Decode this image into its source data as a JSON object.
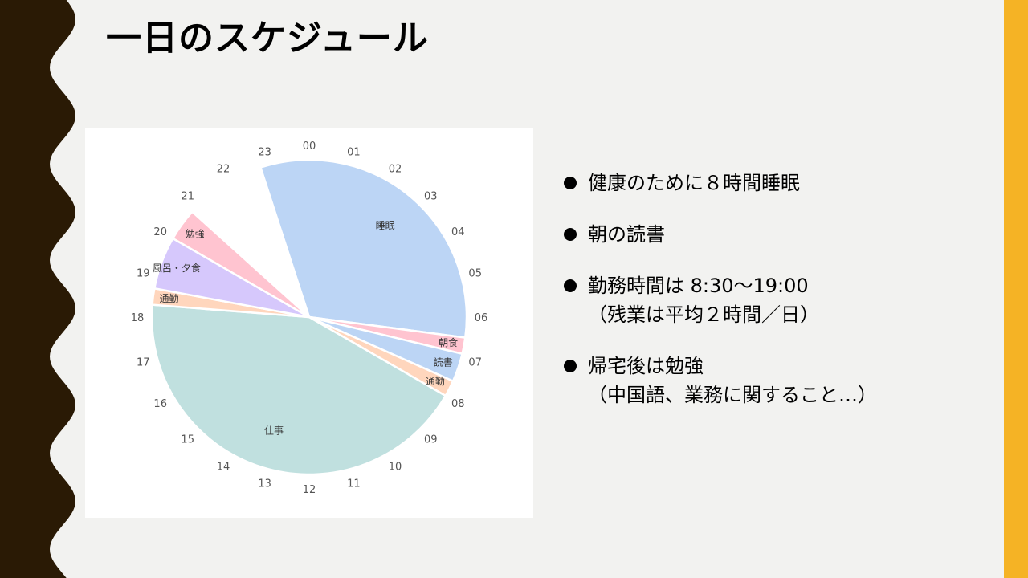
{
  "theme": {
    "background": "#f2f2f0",
    "left_band": "#2a1a05",
    "right_band": "#f5b325"
  },
  "slide": {
    "title": "一日のスケジュール"
  },
  "chart_data": {
    "type": "pie",
    "title": "",
    "unit": "hours",
    "start_hour": 22.8,
    "total": 24,
    "hour_labels": [
      "00",
      "01",
      "02",
      "03",
      "04",
      "05",
      "06",
      "07",
      "08",
      "09",
      "10",
      "11",
      "12",
      "13",
      "14",
      "15",
      "16",
      "17",
      "18",
      "19",
      "20",
      "21",
      "22",
      "23"
    ],
    "slices": [
      {
        "label": "睡眠",
        "value": 7.7,
        "color": "#bcd5f5"
      },
      {
        "label": "朝食",
        "value": 0.4,
        "color": "#ffc4d0"
      },
      {
        "label": "読書",
        "value": 0.7,
        "color": "#bcd5f5"
      },
      {
        "label": "通勤",
        "value": 0.4,
        "color": "#ffd6bd"
      },
      {
        "label": "仕事",
        "value": 10.3,
        "color": "#c0e0df"
      },
      {
        "label": "通勤",
        "value": 0.4,
        "color": "#ffd6bd"
      },
      {
        "label": "風呂・夕食",
        "value": 1.3,
        "color": "#d6c8fc"
      },
      {
        "label": "勉強",
        "value": 0.8,
        "color": "#ffc4d0"
      }
    ]
  },
  "bullets": [
    {
      "lines": [
        "健康のために８時間睡眠"
      ]
    },
    {
      "lines": [
        "朝の読書"
      ]
    },
    {
      "lines": [
        "勤務時間は 8:30～19:00",
        "（残業は平均２時間／日）"
      ]
    },
    {
      "lines": [
        "帰宅後は勉強",
        "（中国語、業務に関すること…）"
      ]
    }
  ]
}
